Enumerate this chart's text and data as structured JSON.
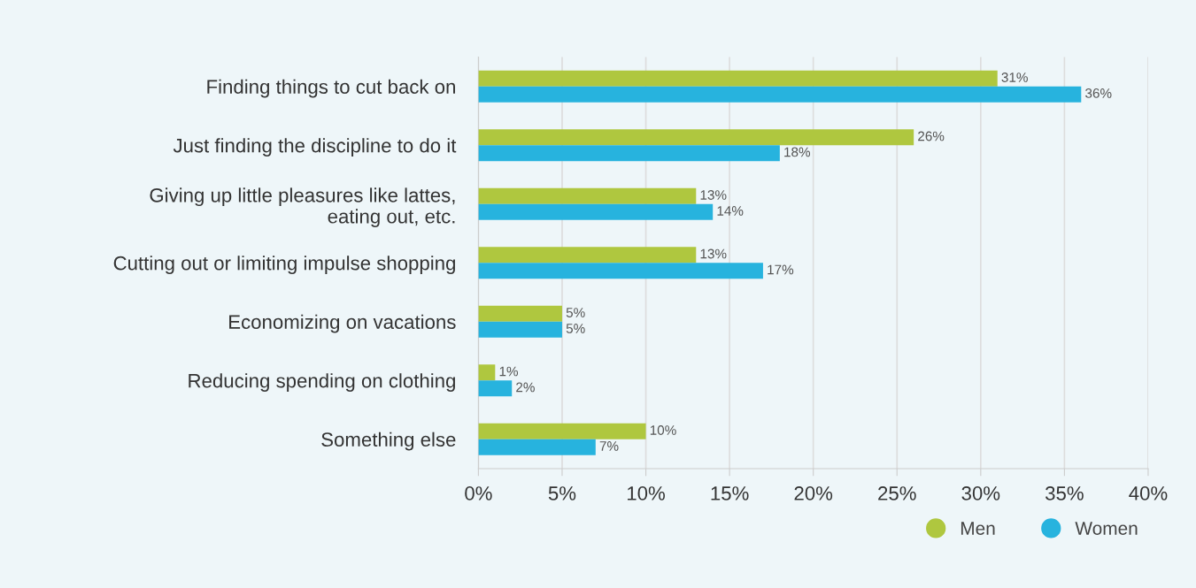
{
  "chart_data": {
    "type": "bar",
    "orientation": "horizontal",
    "categories": [
      "Finding things to cut back on",
      "Just finding the discipline to do it",
      "Giving up little pleasures like lattes,\neating out, etc.",
      "Cutting out or limiting impulse shopping",
      "Economizing on vacations",
      "Reducing spending on clothing",
      "Something else"
    ],
    "series": [
      {
        "name": "Men",
        "color": "#afc73f",
        "values": [
          31,
          26,
          13,
          13,
          5,
          1,
          10
        ],
        "value_labels": [
          "31%",
          "26%",
          "13%",
          "13%",
          "5%",
          "1%",
          "10%"
        ]
      },
      {
        "name": "Women",
        "color": "#27b3de",
        "values": [
          36,
          18,
          14,
          17,
          5,
          2,
          7
        ],
        "value_labels": [
          "36%",
          "18%",
          "14%",
          "17%",
          "5%",
          "2%",
          "7%"
        ]
      }
    ],
    "xlim": [
      0,
      40
    ],
    "xticks": [
      {
        "value": 0,
        "label": "0%"
      },
      {
        "value": 5,
        "label": "5%"
      },
      {
        "value": 10,
        "label": "10%"
      },
      {
        "value": 15,
        "label": "15%"
      },
      {
        "value": 20,
        "label": "20%"
      },
      {
        "value": 25,
        "label": "25%"
      },
      {
        "value": 30,
        "label": "30%"
      },
      {
        "value": 35,
        "label": "35%"
      },
      {
        "value": 40,
        "label": "40%"
      }
    ],
    "grid": "x",
    "legend": "bottom right"
  }
}
